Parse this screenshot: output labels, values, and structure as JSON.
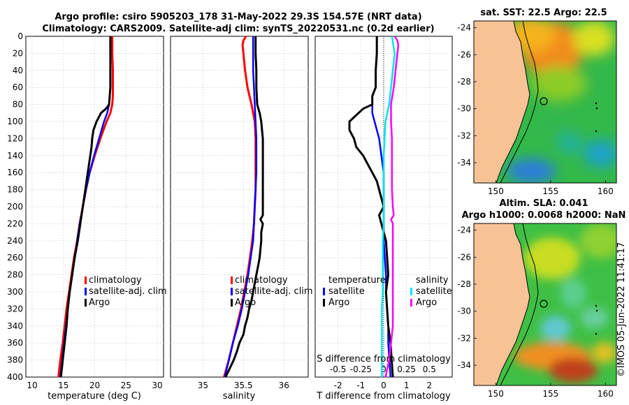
{
  "titles": {
    "line1": "Argo profile: csiro 5905203_178 31-May-2022 29.3S 154.57E (NRT data)",
    "line2": "Climatology: CARS2009. Satellite-adj clim: synTS_20220531.nc (0.2d earlier)"
  },
  "colors": {
    "climatology": "#ff0000",
    "satellite": "#0000ff",
    "argo": "#000000",
    "satellite_s": "#00e5ee",
    "argo_s": "#ff00ff",
    "land": "#f7c396"
  },
  "chart_data": [
    {
      "type": "line",
      "name": "temperature-profile",
      "xlabel": "temperature (deg C)",
      "xlim": [
        9,
        31
      ],
      "ylim": [
        0,
        400
      ],
      "xticks": [
        "10",
        "15",
        "20",
        "25",
        "30"
      ],
      "yticks": [
        "0",
        "20",
        "40",
        "60",
        "80",
        "100",
        "120",
        "140",
        "160",
        "180",
        "200",
        "220",
        "240",
        "260",
        "280",
        "300",
        "320",
        "340",
        "360",
        "380",
        "400"
      ],
      "legend": [
        "climatology",
        "satellite-adj. clim",
        "Argo"
      ],
      "series": [
        {
          "name": "climatology",
          "color": "#ff0000",
          "depth": [
            0,
            20,
            40,
            60,
            70,
            80,
            90,
            100,
            120,
            140,
            160,
            180,
            200,
            220,
            240,
            260,
            280,
            300,
            320,
            340,
            360,
            380,
            400
          ],
          "values": [
            22.8,
            22.8,
            22.9,
            22.9,
            22.9,
            22.8,
            22.5,
            21.9,
            20.9,
            20.0,
            19.2,
            18.6,
            18.1,
            17.6,
            17.2,
            16.7,
            16.3,
            15.9,
            15.5,
            15.2,
            14.9,
            14.5,
            14.2
          ]
        },
        {
          "name": "satellite-adj. clim",
          "color": "#0000ff",
          "depth": [
            0,
            20,
            40,
            60,
            70,
            80,
            90,
            100,
            120,
            140,
            160,
            180,
            200,
            220,
            240,
            260,
            280,
            300,
            320,
            340,
            360,
            380,
            400
          ],
          "values": [
            22.5,
            22.5,
            22.5,
            22.5,
            22.4,
            22.3,
            22.0,
            21.5,
            20.7,
            19.9,
            19.2,
            18.6,
            18.1,
            17.6,
            17.2,
            16.8,
            16.4,
            16.0,
            15.7,
            15.4,
            15.1,
            14.8,
            14.5
          ]
        },
        {
          "name": "Argo",
          "color": "#000000",
          "depth": [
            0,
            20,
            40,
            60,
            70,
            80,
            85,
            90,
            100,
            110,
            120,
            130,
            140,
            160,
            180,
            200,
            220,
            240,
            260,
            280,
            300,
            320,
            340,
            360,
            380,
            400
          ],
          "values": [
            22.5,
            22.5,
            22.5,
            22.5,
            22.4,
            22.3,
            21.8,
            21.0,
            20.3,
            19.8,
            19.6,
            19.5,
            19.3,
            18.9,
            18.5,
            18.1,
            17.7,
            17.3,
            16.8,
            16.4,
            16.0,
            15.7,
            15.5,
            15.2,
            14.9,
            14.6
          ]
        }
      ]
    },
    {
      "type": "line",
      "name": "salinity-profile",
      "xlabel": "salinity",
      "xlim": [
        34.6,
        36.3
      ],
      "ylim": [
        0,
        400
      ],
      "xticks": [
        "35",
        "35.5",
        "36"
      ],
      "legend": [
        "climatology",
        "satellite-adj. clim",
        "Argo"
      ],
      "series": [
        {
          "name": "climatology",
          "color": "#ff0000",
          "depth": [
            0,
            5,
            10,
            20,
            40,
            60,
            80,
            100,
            120,
            140,
            160,
            180,
            200,
            220,
            240,
            260,
            280,
            300,
            320,
            340,
            360,
            380,
            400
          ],
          "values": [
            35.53,
            35.5,
            35.49,
            35.5,
            35.52,
            35.55,
            35.6,
            35.64,
            35.65,
            35.65,
            35.65,
            35.65,
            35.64,
            35.63,
            35.61,
            35.58,
            35.55,
            35.51,
            35.47,
            35.42,
            35.37,
            35.32,
            35.26
          ]
        },
        {
          "name": "satellite-adj. clim",
          "color": "#0000ff",
          "depth": [
            0,
            10,
            20,
            40,
            60,
            80,
            100,
            120,
            140,
            160,
            180,
            200,
            220,
            240,
            260,
            280,
            300,
            320,
            340,
            360,
            380,
            400
          ],
          "values": [
            35.62,
            35.62,
            35.62,
            35.62,
            35.63,
            35.64,
            35.65,
            35.66,
            35.66,
            35.66,
            35.65,
            35.64,
            35.63,
            35.62,
            35.59,
            35.56,
            35.52,
            35.48,
            35.43,
            35.37,
            35.32,
            35.27
          ]
        },
        {
          "name": "Argo",
          "color": "#000000",
          "depth": [
            0,
            20,
            40,
            60,
            80,
            90,
            100,
            110,
            120,
            140,
            160,
            180,
            200,
            210,
            215,
            220,
            230,
            240,
            250,
            260,
            270,
            280,
            290,
            300,
            310,
            320,
            330,
            340,
            350,
            360,
            370,
            380,
            390,
            400
          ],
          "values": [
            35.65,
            35.65,
            35.66,
            35.66,
            35.67,
            35.7,
            35.72,
            35.73,
            35.74,
            35.74,
            35.74,
            35.74,
            35.74,
            35.74,
            35.71,
            35.74,
            35.72,
            35.72,
            35.71,
            35.7,
            35.68,
            35.66,
            35.64,
            35.62,
            35.6,
            35.57,
            35.55,
            35.52,
            35.5,
            35.45,
            35.42,
            35.38,
            35.33,
            35.28
          ]
        }
      ]
    },
    {
      "type": "line",
      "name": "difference-profile",
      "xlabel": "T difference from climatology",
      "xlabel2": "S difference from climatology",
      "xlim": [
        -3,
        3
      ],
      "ylim": [
        0,
        400
      ],
      "xticks": [
        "-2",
        "-1",
        "0",
        "1",
        "2"
      ],
      "xticks2": [
        "-0.5",
        "-0.25",
        "0",
        "0.25",
        "0.5"
      ],
      "legend_t": {
        "title": "temperature",
        "items": [
          "satellite",
          "Argo"
        ]
      },
      "legend_s": {
        "title": "salinity",
        "items": [
          "satellite",
          "Argo"
        ]
      },
      "series": [
        {
          "name": "T satellite",
          "color": "#0000ff",
          "depth": [
            0,
            20,
            40,
            60,
            70,
            80,
            90,
            100,
            120,
            140,
            160,
            180,
            200,
            220,
            240,
            260,
            280,
            300,
            320,
            340,
            360,
            380,
            400
          ],
          "values": [
            -0.3,
            -0.3,
            -0.35,
            -0.35,
            -0.5,
            -0.5,
            -0.5,
            -0.4,
            -0.2,
            -0.1,
            0.0,
            0.0,
            0.0,
            0.0,
            0.0,
            0.05,
            0.1,
            0.1,
            0.15,
            0.2,
            0.2,
            0.25,
            0.3
          ]
        },
        {
          "name": "T Argo",
          "color": "#000000",
          "depth": [
            0,
            20,
            40,
            60,
            70,
            80,
            85,
            90,
            95,
            100,
            110,
            120,
            130,
            140,
            150,
            160,
            170,
            180,
            190,
            200,
            210,
            220,
            230,
            240,
            260,
            280,
            300,
            320,
            340,
            360,
            380,
            400
          ],
          "values": [
            -0.3,
            -0.3,
            -0.35,
            -0.35,
            -0.5,
            -0.5,
            -0.9,
            -1.1,
            -1.3,
            -1.5,
            -1.5,
            -1.3,
            -1.2,
            -0.9,
            -0.7,
            -0.5,
            -0.3,
            -0.2,
            -0.1,
            0.0,
            -0.2,
            -0.1,
            0.0,
            0.1,
            0.15,
            0.2,
            0.1,
            0.15,
            0.2,
            0.3,
            0.35,
            0.4
          ]
        },
        {
          "name": "S satellite",
          "color": "#00e5ee",
          "depth": [
            0,
            20,
            40,
            60,
            80,
            100,
            120,
            140,
            160,
            180,
            200,
            220,
            240,
            260,
            280,
            300,
            320,
            340,
            360,
            380,
            400
          ],
          "values": [
            0.09,
            0.12,
            0.1,
            0.08,
            0.06,
            0.02,
            0.01,
            0.0,
            0.0,
            0.0,
            0.0,
            0.0,
            -0.01,
            -0.01,
            -0.01,
            -0.01,
            -0.02,
            -0.02,
            -0.02,
            -0.02,
            -0.02
          ]
        },
        {
          "name": "S Argo",
          "color": "#ff00ff",
          "depth": [
            0,
            5,
            10,
            20,
            40,
            60,
            80,
            100,
            120,
            140,
            160,
            180,
            200,
            210,
            215,
            220,
            230,
            240,
            260,
            280,
            300,
            320,
            340,
            360,
            380,
            400
          ],
          "values": [
            0.12,
            0.15,
            0.16,
            0.15,
            0.13,
            0.11,
            0.08,
            0.08,
            0.09,
            0.09,
            0.09,
            0.09,
            0.1,
            0.11,
            0.08,
            0.1,
            0.1,
            0.1,
            0.1,
            0.1,
            0.1,
            0.1,
            0.1,
            0.08,
            0.06,
            0.02
          ]
        }
      ]
    },
    {
      "type": "heatmap",
      "name": "sst-map",
      "title": "sat. SST: 22.5 Argo: 22.5",
      "xticks": [
        "150",
        "155",
        "160"
      ],
      "yticks": [
        "-24",
        "-26",
        "-28",
        "-30",
        "-32",
        "-34"
      ]
    },
    {
      "type": "heatmap",
      "name": "sla-map",
      "title1": "Altim. SLA: 0.041",
      "title2": "Argo h1000: 0.0068 h2000: NaN",
      "xticks": [
        "150",
        "155",
        "160"
      ],
      "yticks": [
        "-24",
        "-26",
        "-28",
        "-30",
        "-32",
        "-34"
      ]
    }
  ],
  "watermark": "©IMOS 05-Jun-2022 11:41:17"
}
